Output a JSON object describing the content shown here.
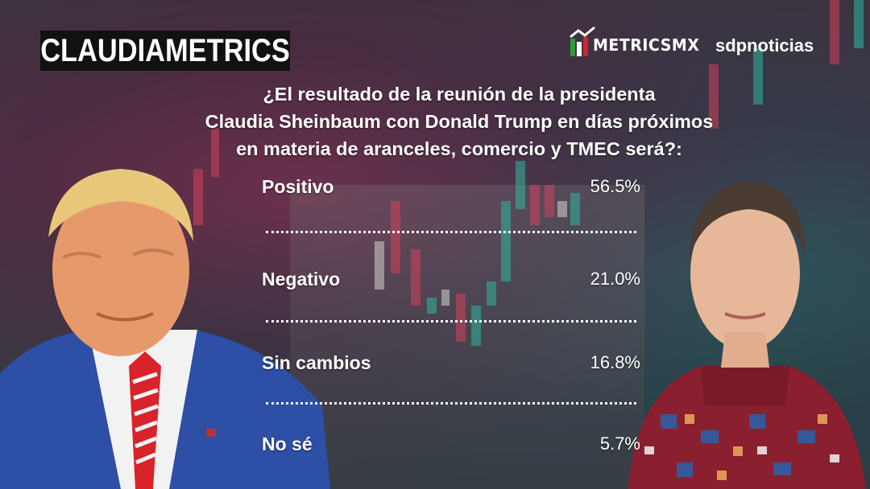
{
  "header": {
    "badge_label": "CLAUDIAMETRICS",
    "logo_metrics": "METRICSMX",
    "logo_sdp": "sdpnoticias"
  },
  "question_lines": [
    "¿El resultado de la reunión de la presidenta",
    "Claudia Sheinbaum con Donald Trump en días próximos",
    "en materia de aranceles, comercio y TMEC será?:"
  ],
  "results": [
    {
      "label": "Positivo",
      "value": "56.5%"
    },
    {
      "label": "Negativo",
      "value": "21.0%"
    },
    {
      "label": "Sin cambios",
      "value": "16.8%"
    },
    {
      "label": "No sé",
      "value": "5.7%"
    }
  ],
  "colors": {
    "badge_bg": "#111111",
    "text": "#ffffff",
    "candle_red": "#d2425a",
    "candle_green": "#2fb6a0",
    "logo_green": "#2e9a3e",
    "logo_red": "#d2232a"
  },
  "icons": {
    "left_photo": "donald-trump-photo",
    "right_photo": "claudia-sheinbaum-photo"
  }
}
